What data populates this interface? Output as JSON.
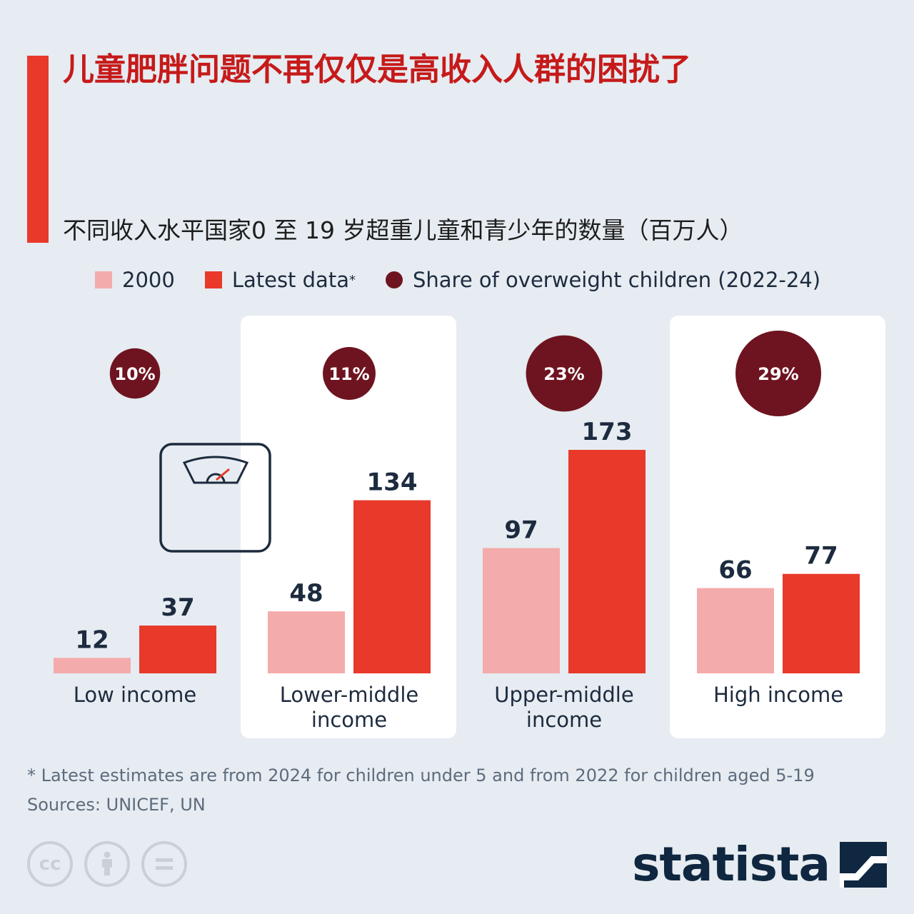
{
  "title": "儿童肥胖问题不再仅仅是高收入人群的困扰了",
  "subtitle": "不同收入水平国家0 至 19 岁超重儿童和青少年的数量（百万人）",
  "legend": {
    "series_2000": "2000",
    "series_latest": "Latest data",
    "series_latest_mark": "*",
    "share": "Share of overweight children (2022-24)"
  },
  "colors": {
    "accent": "#e8392a",
    "title": "#c61a1a",
    "bar_2000": "#f4abab",
    "bar_latest": "#e8392a",
    "share_circle": "#6e1420",
    "value_text": "#1d2b3f"
  },
  "chart_data": {
    "type": "bar",
    "categories": [
      [
        "Low income"
      ],
      [
        "Lower-middle",
        "income"
      ],
      [
        "Upper-middle",
        "income"
      ],
      [
        "High income"
      ]
    ],
    "series": [
      {
        "name": "2000",
        "values": [
          12,
          48,
          97,
          66
        ]
      },
      {
        "name": "Latest data*",
        "values": [
          37,
          134,
          173,
          77
        ]
      }
    ],
    "share_of_overweight_children": {
      "values": [
        10,
        11,
        23,
        29
      ],
      "labels": [
        "10%",
        "11%",
        "23%",
        "29%"
      ]
    },
    "ylim": [
      0,
      190
    ],
    "grid": false,
    "legend_position": "top-left",
    "xlabel": "",
    "ylabel": ""
  },
  "footnote": {
    "note": "* Latest estimates are from 2024 for children under 5 and from 2022 for children aged 5-19",
    "sources": "Sources: UNICEF, UN"
  },
  "license_icons": [
    "cc-icon",
    "by-icon",
    "nd-icon"
  ],
  "brand": {
    "name": "statista"
  }
}
